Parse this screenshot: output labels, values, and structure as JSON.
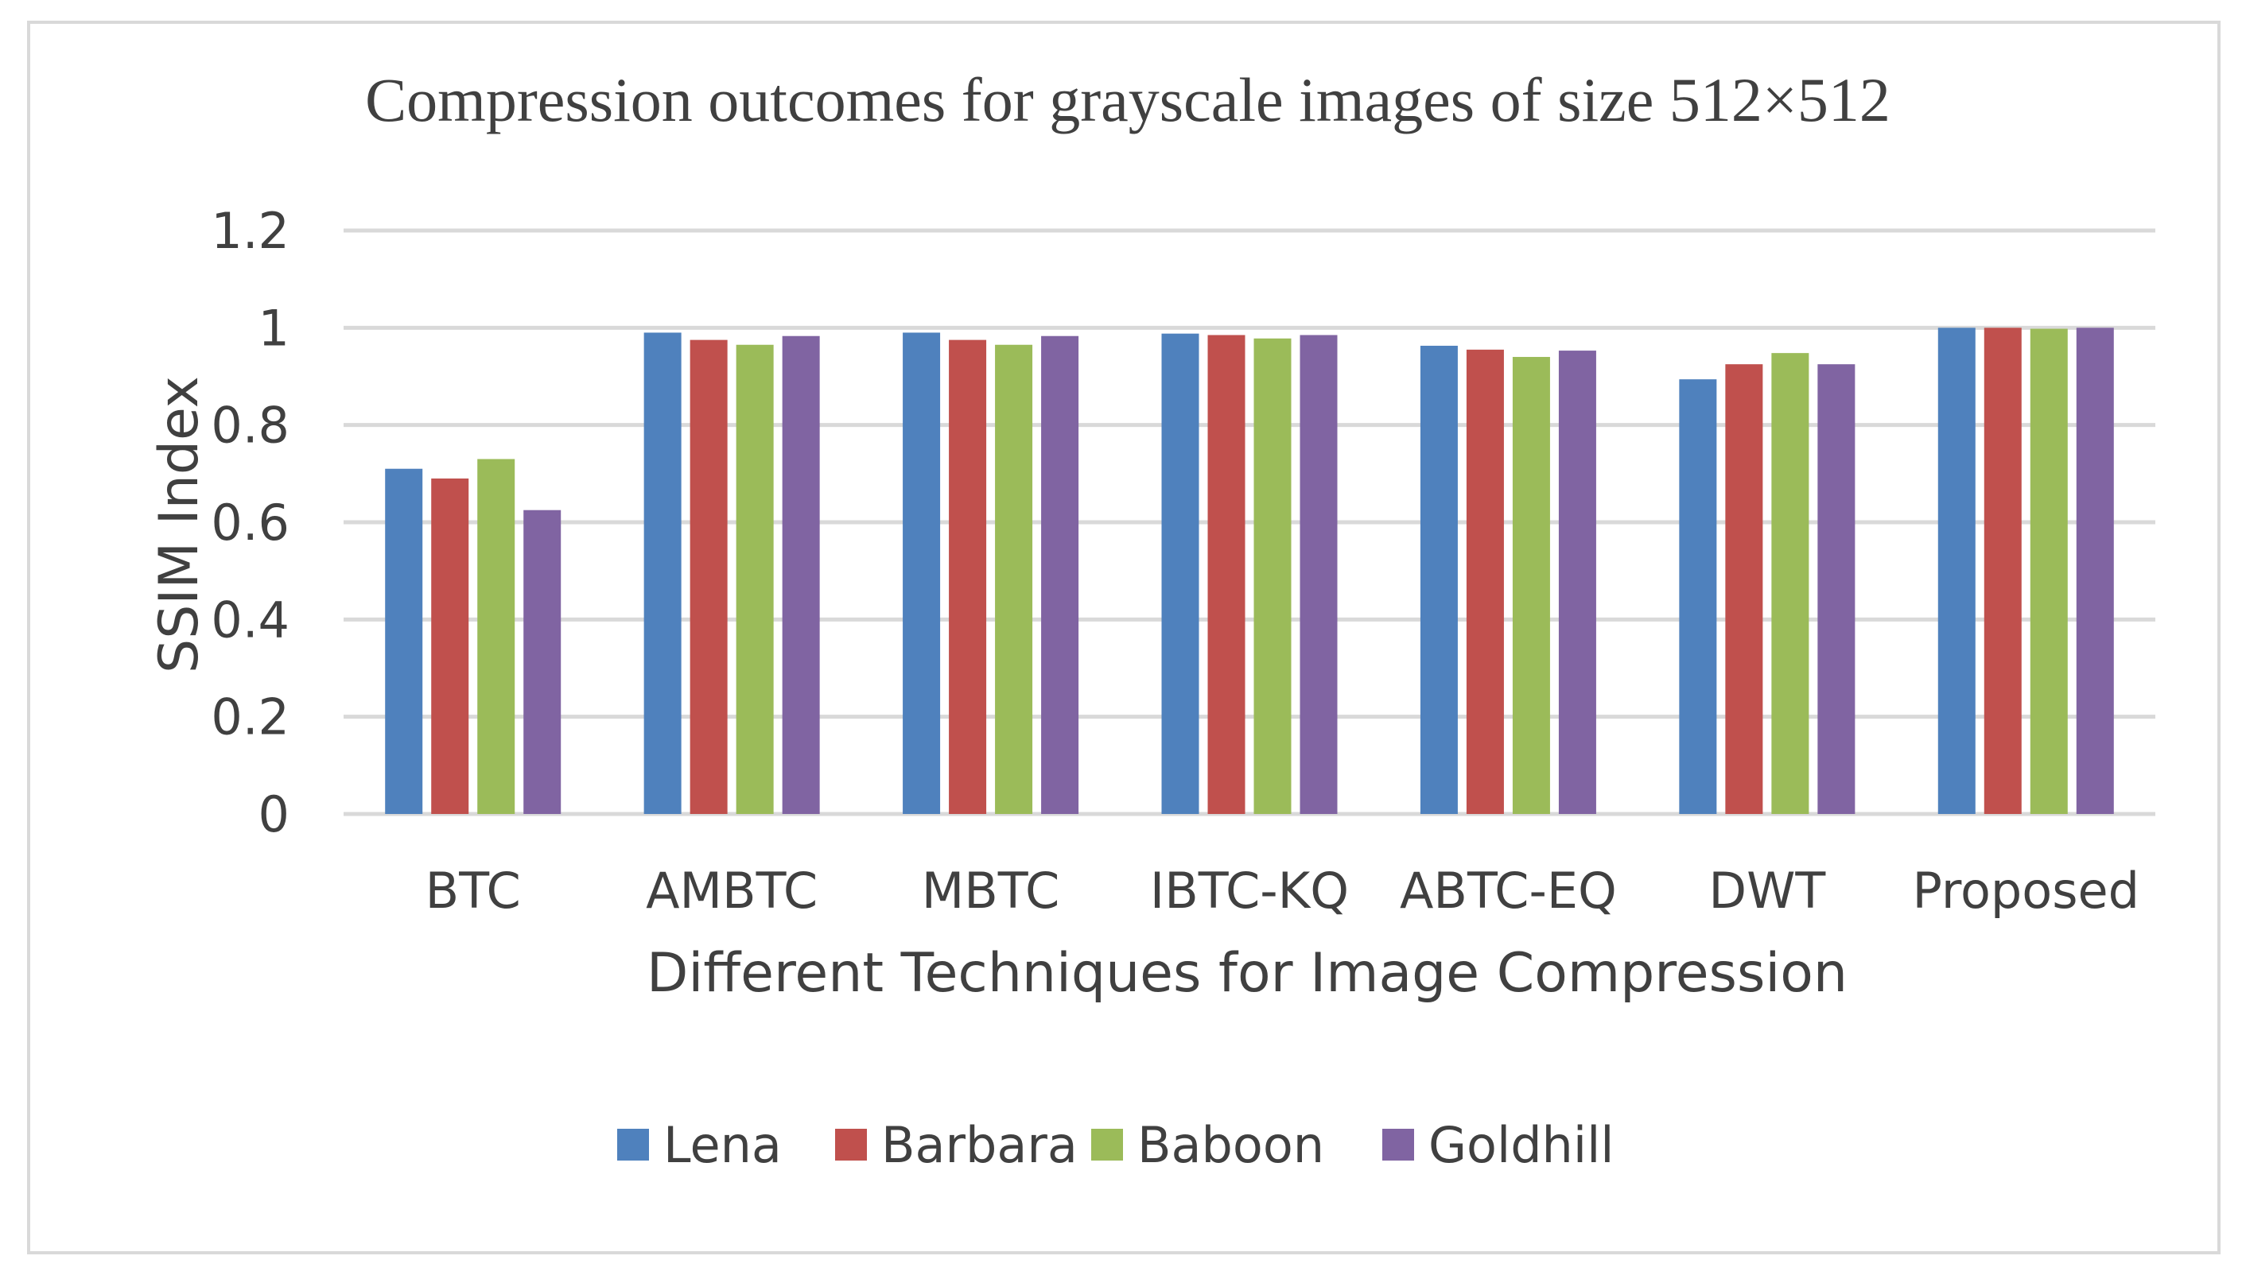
{
  "chart_data": {
    "type": "bar",
    "title": "Compression outcomes  for grayscale images of size 512×512",
    "xlabel": "Different Techniques for Image Compression",
    "ylabel": "SSIM Index",
    "categories": [
      "BTC",
      "AMBTC",
      "MBTC",
      "IBTC-KQ",
      "ABTC-EQ",
      "DWT",
      "Proposed"
    ],
    "series": [
      {
        "name": "Lena",
        "color": "#4f81bd",
        "values": [
          0.71,
          0.99,
          0.99,
          0.988,
          0.963,
          0.894,
          1.0
        ]
      },
      {
        "name": "Barbara",
        "color": "#c0504d",
        "values": [
          0.69,
          0.975,
          0.975,
          0.985,
          0.955,
          0.925,
          1.0
        ]
      },
      {
        "name": "Baboon",
        "color": "#9bbb59",
        "values": [
          0.73,
          0.965,
          0.965,
          0.978,
          0.94,
          0.948,
          0.998
        ]
      },
      {
        "name": "Goldhill",
        "color": "#8064a2",
        "values": [
          0.625,
          0.983,
          0.983,
          0.985,
          0.953,
          0.925,
          1.0
        ]
      }
    ],
    "yticks": [
      "0",
      "0.2",
      "0.4",
      "0.6",
      "0.8",
      "1",
      "1.2"
    ],
    "ylim": [
      0,
      1.2
    ],
    "grid": true,
    "legend_position": "bottom"
  }
}
